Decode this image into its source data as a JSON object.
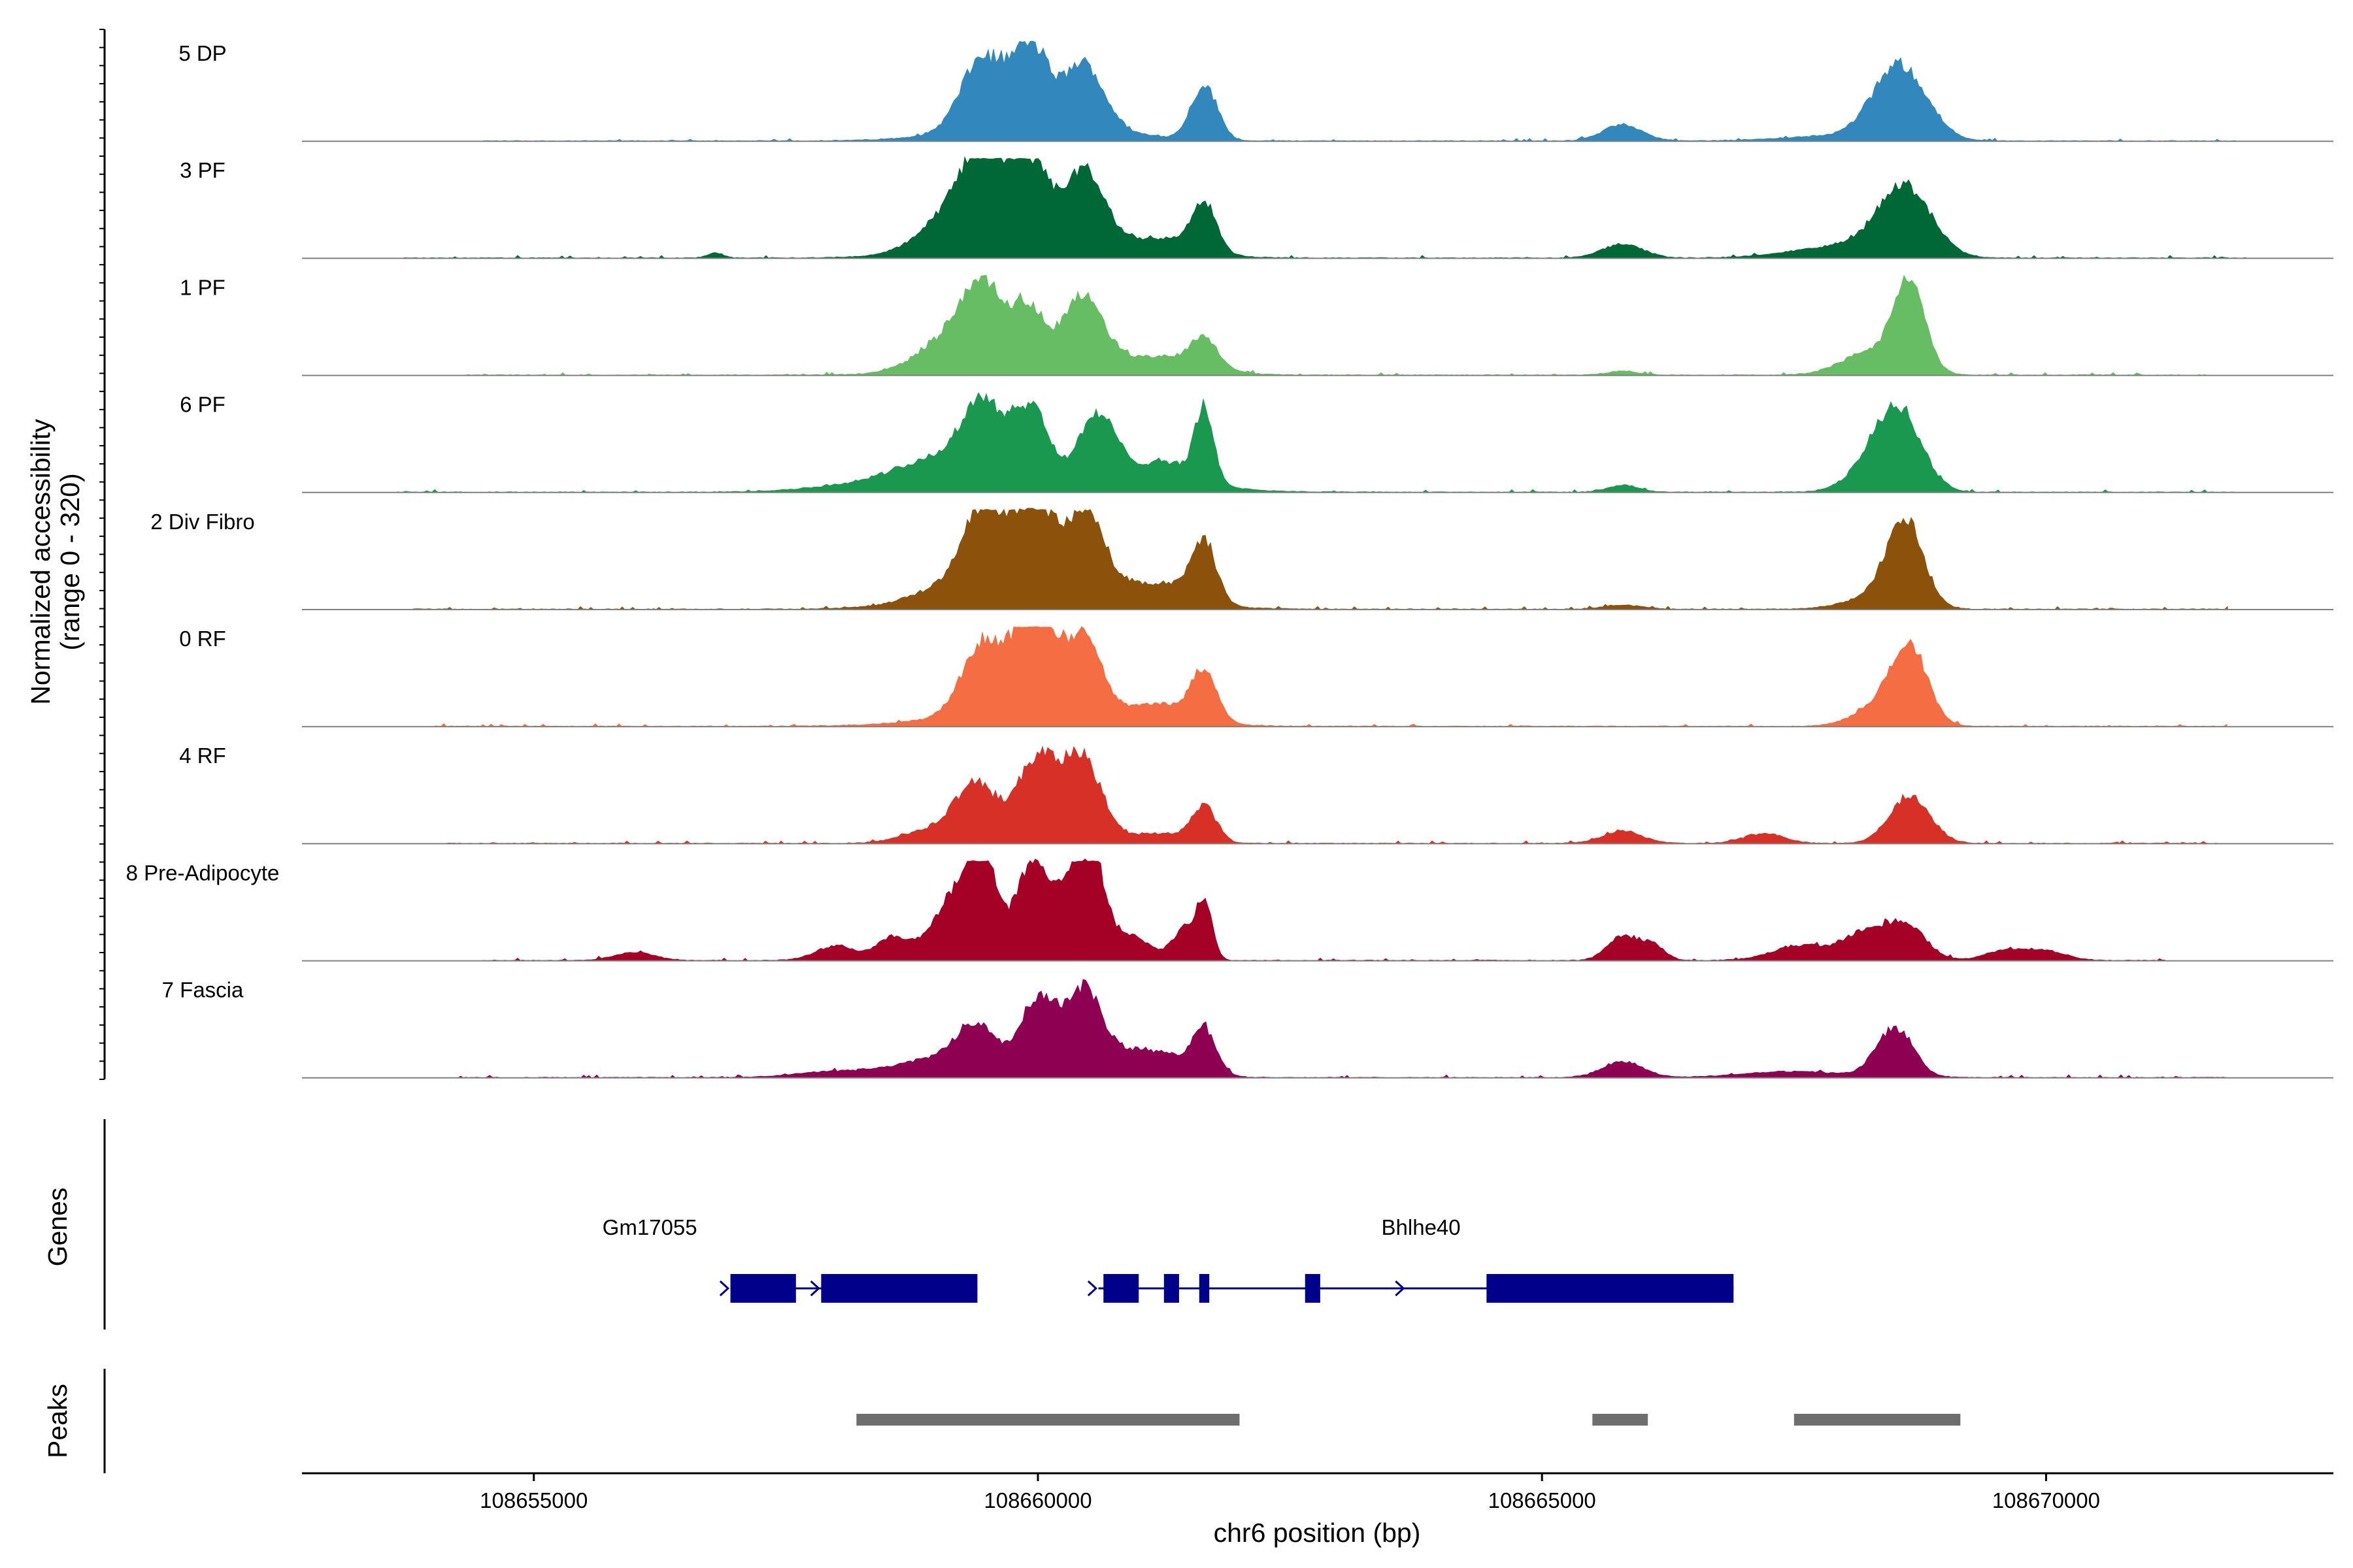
{
  "chart_data": {
    "type": "area",
    "title": "",
    "xlabel": "chr6 position (bp)",
    "ylabel_lines": [
      "Normalized accessibility",
      "(range 0 - 320)"
    ],
    "y_range": [
      0,
      320
    ],
    "x_range": [
      108652700,
      108672850
    ],
    "x_ticks": [
      {
        "value": 108655000,
        "label": "108655000"
      },
      {
        "value": 108660000,
        "label": "108660000"
      },
      {
        "value": 108665000,
        "label": "108665000"
      },
      {
        "value": 108670000,
        "label": "108670000"
      }
    ],
    "tracks": [
      {
        "name": "5 DP",
        "color": "#3288bd",
        "signal_extent": [
          108654500,
          108671900
        ],
        "peaks": [
          [
            108659450,
            0.7,
            210
          ],
          [
            108659850,
            0.45,
            150
          ],
          [
            108660000,
            0.4,
            140
          ],
          [
            108660450,
            0.62,
            200
          ],
          [
            108660000,
            0.2,
            700
          ],
          [
            108661650,
            0.55,
            130
          ],
          [
            108665800,
            0.16,
            200
          ],
          [
            108668550,
            0.75,
            260
          ],
          [
            108667900,
            0.05,
            500
          ]
        ]
      },
      {
        "name": "3 PF",
        "color": "#006837",
        "signal_extent": [
          108653700,
          108672000
        ],
        "peaks": [
          [
            108659450,
            0.75,
            200
          ],
          [
            108659150,
            0.35,
            300
          ],
          [
            108659800,
            0.5,
            150
          ],
          [
            108660000,
            0.45,
            130
          ],
          [
            108660450,
            0.7,
            200
          ],
          [
            108660100,
            0.22,
            800
          ],
          [
            108661650,
            0.48,
            120
          ],
          [
            108661300,
            0.12,
            300
          ],
          [
            108656800,
            0.05,
            80
          ],
          [
            108665800,
            0.14,
            200
          ],
          [
            108668600,
            0.68,
            260
          ],
          [
            108668000,
            0.12,
            500
          ]
        ]
      },
      {
        "name": "1 PF",
        "color": "#66bd63",
        "signal_extent": [
          108654300,
          108671600
        ],
        "peaks": [
          [
            108659450,
            0.72,
            200
          ],
          [
            108659100,
            0.28,
            300
          ],
          [
            108659900,
            0.5,
            150
          ],
          [
            108660450,
            0.65,
            190
          ],
          [
            108660000,
            0.18,
            700
          ],
          [
            108661650,
            0.28,
            130
          ],
          [
            108661300,
            0.15,
            400
          ],
          [
            108668650,
            0.85,
            150
          ],
          [
            108668300,
            0.25,
            300
          ],
          [
            108665800,
            0.04,
            150
          ]
        ]
      },
      {
        "name": "6 PF",
        "color": "#1a9850",
        "signal_extent": [
          108653600,
          108671900
        ],
        "peaks": [
          [
            108659450,
            0.68,
            190
          ],
          [
            108659000,
            0.25,
            400
          ],
          [
            108659850,
            0.4,
            150
          ],
          [
            108660000,
            0.35,
            130
          ],
          [
            108660600,
            0.58,
            170
          ],
          [
            108660200,
            0.22,
            900
          ],
          [
            108661650,
            0.7,
            90
          ],
          [
            108661300,
            0.2,
            300
          ],
          [
            108658200,
            0.06,
            500
          ],
          [
            108665800,
            0.07,
            150
          ],
          [
            108668550,
            0.72,
            220
          ],
          [
            108668300,
            0.25,
            250
          ]
        ]
      },
      {
        "name": "2 Div Fibro",
        "color": "#8c510a",
        "signal_extent": [
          108653800,
          108671800
        ],
        "peaks": [
          [
            108659450,
            0.83,
            200
          ],
          [
            108659850,
            0.55,
            150
          ],
          [
            108660050,
            0.45,
            130
          ],
          [
            108660450,
            0.75,
            200
          ],
          [
            108660100,
            0.28,
            800
          ],
          [
            108661650,
            0.57,
            120
          ],
          [
            108661300,
            0.17,
            300
          ],
          [
            108659000,
            0.1,
            300
          ],
          [
            108668600,
            0.85,
            180
          ],
          [
            108668300,
            0.12,
            300
          ],
          [
            108665800,
            0.04,
            200
          ]
        ]
      },
      {
        "name": "0 RF",
        "color": "#f46d43",
        "signal_extent": [
          108654000,
          108671800
        ],
        "peaks": [
          [
            108659450,
            0.7,
            200
          ],
          [
            108659850,
            0.55,
            150
          ],
          [
            108660050,
            0.72,
            150
          ],
          [
            108660450,
            0.73,
            170
          ],
          [
            108660100,
            0.22,
            800
          ],
          [
            108661650,
            0.48,
            120
          ],
          [
            108661300,
            0.15,
            300
          ],
          [
            108668650,
            0.72,
            180
          ],
          [
            108668350,
            0.2,
            250
          ]
        ]
      },
      {
        "name": "4 RF",
        "color": "#d73027",
        "signal_extent": [
          108654000,
          108671700
        ],
        "peaks": [
          [
            108659400,
            0.55,
            200
          ],
          [
            108660000,
            0.85,
            200
          ],
          [
            108660450,
            0.82,
            190
          ],
          [
            108659000,
            0.15,
            300
          ],
          [
            108661650,
            0.35,
            120
          ],
          [
            108661200,
            0.1,
            300
          ],
          [
            108665800,
            0.12,
            200
          ],
          [
            108668650,
            0.48,
            200
          ],
          [
            108667200,
            0.1,
            200
          ]
        ]
      },
      {
        "name": "8 Pre-Adipocyte",
        "color": "#a50026",
        "signal_extent": [
          108654500,
          108671200
        ],
        "peaks": [
          [
            108659450,
            1.0,
            120
          ],
          [
            108659250,
            0.45,
            150
          ],
          [
            108659050,
            0.35,
            200
          ],
          [
            108658550,
            0.22,
            150
          ],
          [
            108659950,
            0.55,
            150
          ],
          [
            108660000,
            0.45,
            300
          ],
          [
            108660550,
            0.85,
            120
          ],
          [
            108660350,
            0.6,
            120
          ],
          [
            108660900,
            0.25,
            200
          ],
          [
            108661650,
            0.55,
            80
          ],
          [
            108661450,
            0.3,
            120
          ],
          [
            108658000,
            0.15,
            200
          ],
          [
            108656000,
            0.08,
            200
          ],
          [
            108665800,
            0.25,
            150
          ],
          [
            108666100,
            0.15,
            120
          ],
          [
            108668600,
            0.36,
            200
          ],
          [
            108668200,
            0.25,
            200
          ],
          [
            108667600,
            0.15,
            300
          ],
          [
            108669600,
            0.1,
            200
          ],
          [
            108670000,
            0.09,
            200
          ]
        ]
      },
      {
        "name": "7 Fascia",
        "color": "#8e0152",
        "signal_extent": [
          108654200,
          108671800
        ],
        "peaks": [
          [
            108659400,
            0.45,
            200
          ],
          [
            108660000,
            0.78,
            180
          ],
          [
            108660450,
            0.82,
            180
          ],
          [
            108659000,
            0.18,
            400
          ],
          [
            108660900,
            0.2,
            300
          ],
          [
            108661650,
            0.42,
            120
          ],
          [
            108661300,
            0.15,
            300
          ],
          [
            108658000,
            0.06,
            400
          ],
          [
            108665800,
            0.16,
            200
          ],
          [
            108668500,
            0.5,
            180
          ],
          [
            108667500,
            0.06,
            500
          ]
        ]
      }
    ],
    "genes": [
      {
        "name": "Gm17055",
        "label_x": 108656150,
        "strand": "+",
        "line": [
          108656950,
          108659400
        ],
        "exons": [
          [
            108656950,
            108657600
          ],
          [
            108657850,
            108659400
          ]
        ],
        "arrows": [
          108656900,
          108657800
        ]
      },
      {
        "name": "Bhlhe40",
        "label_x": 108663800,
        "strand": "+",
        "line": [
          108660600,
          108666900
        ],
        "exons": [
          [
            108660650,
            108661000
          ],
          [
            108661250,
            108661400
          ],
          [
            108661600,
            108661700
          ],
          [
            108662650,
            108662800
          ],
          [
            108664450,
            108666900
          ]
        ],
        "arrows": [
          108660550,
          108663600
        ]
      }
    ],
    "peaks_track": [
      [
        108658200,
        108662000
      ],
      [
        108665500,
        108666050
      ],
      [
        108667500,
        108669150
      ]
    ],
    "panel_labels": {
      "genes": "Genes",
      "peaks": "Peaks"
    },
    "colors": {
      "gene": "#00008b",
      "peak": "#6e6e6e",
      "baseline": "#808080",
      "axis": "#000000"
    }
  }
}
